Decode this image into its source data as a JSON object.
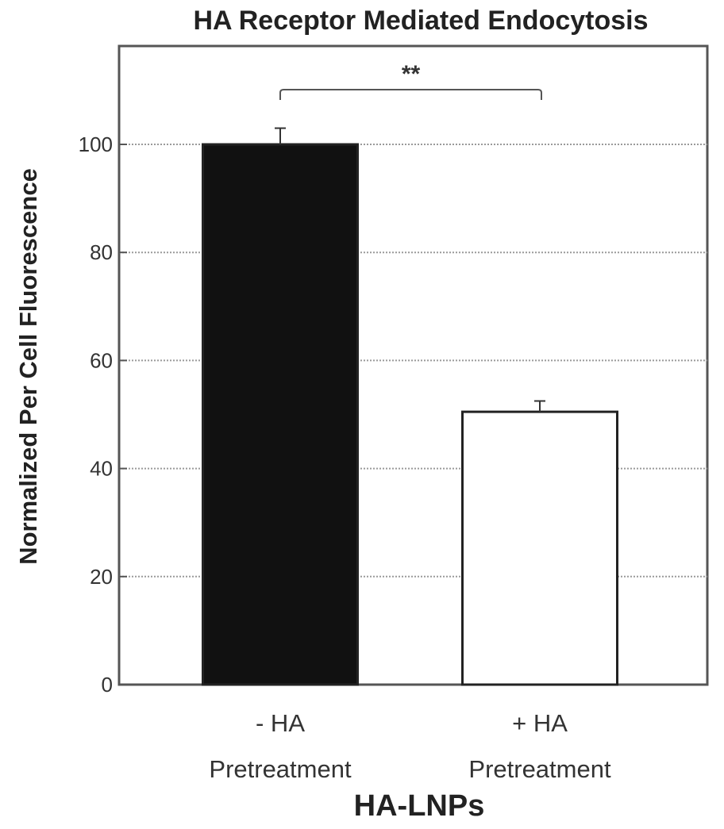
{
  "chart_data": {
    "type": "bar",
    "title": "HA Receptor Mediated Endocytosis",
    "xlabel": "HA-LNPs",
    "ylabel": "Normalized Per Cell Fluorescence",
    "categories": [
      [
        "- HA",
        "Pretreatment"
      ],
      [
        "+ HA",
        "Pretreatment"
      ]
    ],
    "values": [
      100,
      50.5
    ],
    "errors": [
      3,
      2
    ],
    "bar_colors": [
      "#111111",
      "#ffffff"
    ],
    "ylim": [
      0,
      115
    ],
    "yticks": [
      0,
      20,
      40,
      60,
      80,
      100
    ],
    "grid": true,
    "significance": {
      "label": "**",
      "between": [
        0,
        1
      ]
    }
  }
}
